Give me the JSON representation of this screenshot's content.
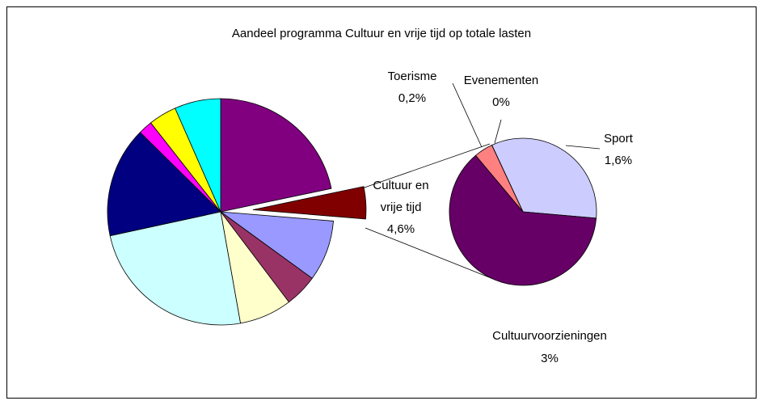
{
  "chart_data": [
    {
      "type": "pie",
      "title": "Aandeel programma Cultuur en vrije tijd op totale lasten",
      "categories": [
        null,
        "Cultuur en vrije tijd",
        null,
        null,
        null,
        null,
        null,
        null,
        null,
        null
      ],
      "values": [
        21.7,
        4.6,
        8.7,
        4.7,
        7.5,
        24.4,
        15.8,
        2,
        4,
        6.6
      ],
      "value_labels": [
        null,
        "4,6%",
        null,
        null,
        null,
        null,
        null,
        null,
        null,
        null
      ],
      "colors": [
        "#800080",
        "#800000",
        "#9999ff",
        "#993366",
        "#ffffcc",
        "#ccffff",
        "#000080",
        "#ff00ff",
        "#ffff00",
        "#00ffff"
      ],
      "exploded": 1
    },
    {
      "type": "pie",
      "categories": [
        "Sport",
        "Cultuurvoorzieningen",
        "Toerisme",
        "Evenementen"
      ],
      "values": [
        1.6,
        3,
        0.2,
        0
      ],
      "value_labels": [
        "1,6%",
        "3%",
        "0,2%",
        "0%"
      ],
      "colors": [
        "#ccccff",
        "#660066",
        "#ff8080",
        "#000080"
      ]
    }
  ]
}
